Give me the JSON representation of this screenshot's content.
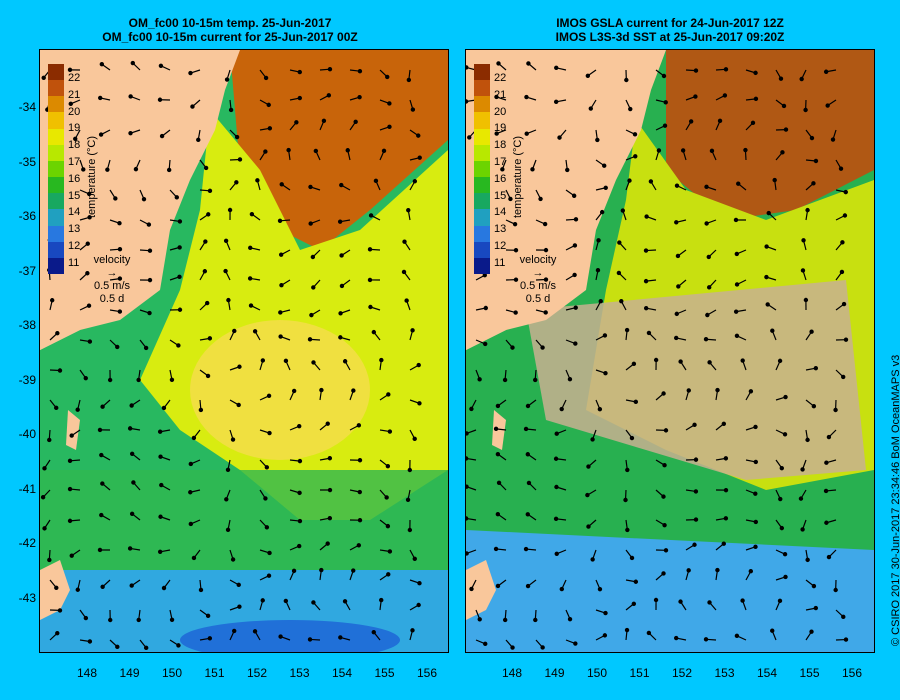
{
  "left_panel": {
    "title_line1": "OM_fc00 10-15m temp. 25-Jun-2017",
    "title_line2": "OM_fc00 10-15m current for 25-Jun-2017 00Z"
  },
  "right_panel": {
    "title_line1": "IMOS GSLA current for 24-Jun-2017 12Z",
    "title_line2": "IMOS L3S-3d SST at 25-Jun-2017 09:20Z"
  },
  "y_ticks": [
    "-34",
    "-35",
    "-36",
    "-37",
    "-38",
    "-39",
    "-40",
    "-41",
    "-42",
    "-43"
  ],
  "x_ticks": [
    "148",
    "149",
    "150",
    "151",
    "152",
    "153",
    "154",
    "155",
    "156"
  ],
  "colorbar": {
    "title": "temperature (°C)",
    "labels": [
      "22",
      "21",
      "20",
      "19",
      "18",
      "17",
      "16",
      "15",
      "14",
      "13",
      "12",
      "11"
    ],
    "colors": [
      "#8b2c00",
      "#c0520c",
      "#dc8a00",
      "#f0c000",
      "#e8e800",
      "#b8e800",
      "#6cd400",
      "#28b820",
      "#18a860",
      "#20a0c0",
      "#2878e0",
      "#1848c0",
      "#0a1a8a"
    ]
  },
  "velocity_legend": {
    "label": "velocity",
    "speed": "0.5 m/s",
    "time": "0.5 d"
  },
  "copyright": "© CSIRO 2017   30-Jun-2017 23:34:46 BoM OceanMAPS v3"
}
